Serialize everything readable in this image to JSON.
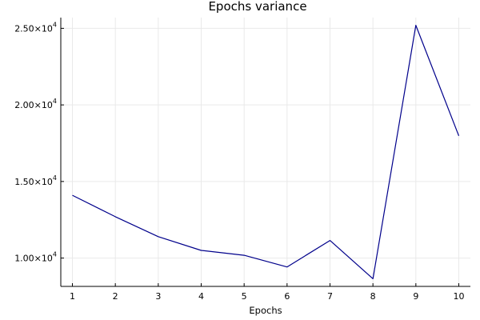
{
  "chart_data": {
    "type": "line",
    "title": "Epochs variance",
    "xlabel": "Epochs",
    "ylabel": "",
    "x": [
      1,
      2,
      3,
      4,
      5,
      6,
      7,
      8,
      9,
      10
    ],
    "series": [
      {
        "values": [
          14100,
          12700,
          11400,
          10500,
          10180,
          9420,
          11150,
          8650,
          25200,
          17980
        ],
        "color": "#00008b"
      }
    ],
    "xticks": [
      1,
      2,
      3,
      4,
      5,
      6,
      7,
      8,
      9,
      10
    ],
    "yticks": [
      {
        "value": 10000,
        "mantissa": "1.00×10",
        "exp": "4"
      },
      {
        "value": 15000,
        "mantissa": "1.50×10",
        "exp": "4"
      },
      {
        "value": 20000,
        "mantissa": "2.00×10",
        "exp": "4"
      },
      {
        "value": 25000,
        "mantissa": "2.50×10",
        "exp": "4"
      }
    ],
    "xlim": [
      0.73,
      10.27
    ],
    "ylim": [
      8150,
      25700
    ],
    "grid": true,
    "legend": "none"
  }
}
